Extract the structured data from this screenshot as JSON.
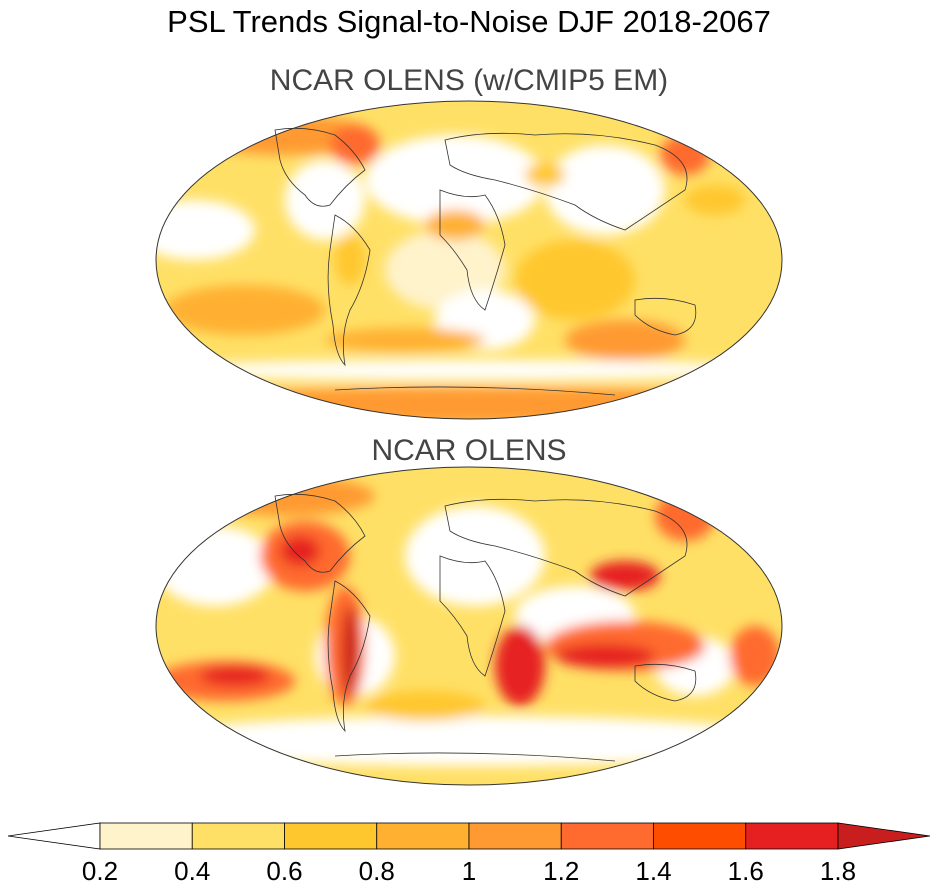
{
  "title": "PSL Trends Signal-to-Noise DJF 2018-2067",
  "panels": [
    {
      "id": "top",
      "title": "NCAR OLENS (w/CMIP5 EM)"
    },
    {
      "id": "bottom",
      "title": "NCAR OLENS"
    }
  ],
  "colorbar": {
    "labels": [
      "0.2",
      "0.4",
      "0.6",
      "0.8",
      "1",
      "1.2",
      "1.4",
      "1.6",
      "1.8"
    ],
    "levels": [
      0.2,
      0.4,
      0.6,
      0.8,
      1.0,
      1.2,
      1.4,
      1.6,
      1.8
    ],
    "colors": [
      "#ffffff",
      "#fff3cc",
      "#ffe066",
      "#ffc72e",
      "#ffb030",
      "#ff9a33",
      "#ff6b2e",
      "#ff4d00",
      "#e62020",
      "#c81e1e"
    ]
  }
}
